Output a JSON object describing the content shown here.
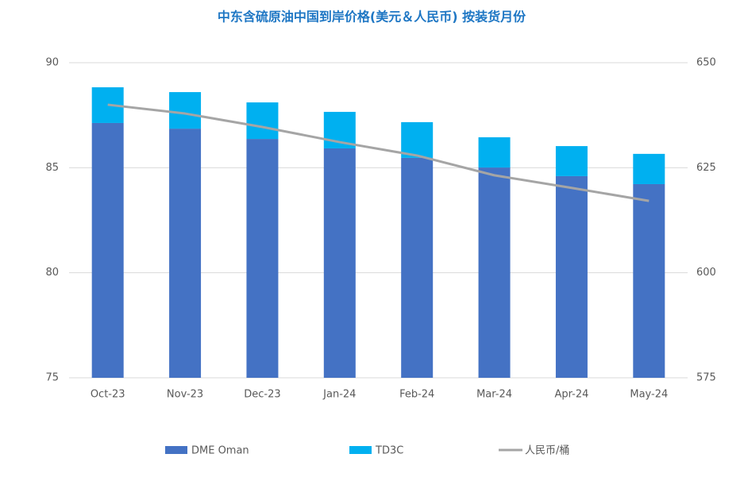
{
  "chart_data": {
    "type": "bar",
    "title": "中东含硫原油中国到岸价格(美元＆人民币) 按装货月份",
    "categories": [
      "Oct-23",
      "Nov-23",
      "Dec-23",
      "Jan-24",
      "Feb-24",
      "Mar-24",
      "Apr-24",
      "May-24"
    ],
    "stacked": true,
    "series": [
      {
        "name": "DME Oman",
        "type": "bar",
        "color": "#4472c4",
        "values": [
          87.13,
          86.86,
          86.37,
          85.92,
          85.47,
          85.01,
          84.6,
          84.22
        ]
      },
      {
        "name": "TD3C",
        "type": "bar",
        "color": "#00b0f0",
        "values": [
          1.7,
          1.74,
          1.74,
          1.74,
          1.7,
          1.44,
          1.43,
          1.44
        ]
      },
      {
        "name": "人民币/桶",
        "type": "line",
        "axis": "y2",
        "color": "#a5a5a5",
        "values": [
          640,
          637.9,
          634.7,
          631.1,
          627.9,
          623.2,
          620.2,
          617.1
        ]
      }
    ],
    "ylim": [
      75,
      90
    ],
    "yticks": [
      75,
      80,
      85,
      90
    ],
    "y2lim": [
      575,
      650
    ],
    "y2ticks": [
      575,
      600,
      625,
      650
    ],
    "grid": true,
    "legend": "bottom"
  }
}
